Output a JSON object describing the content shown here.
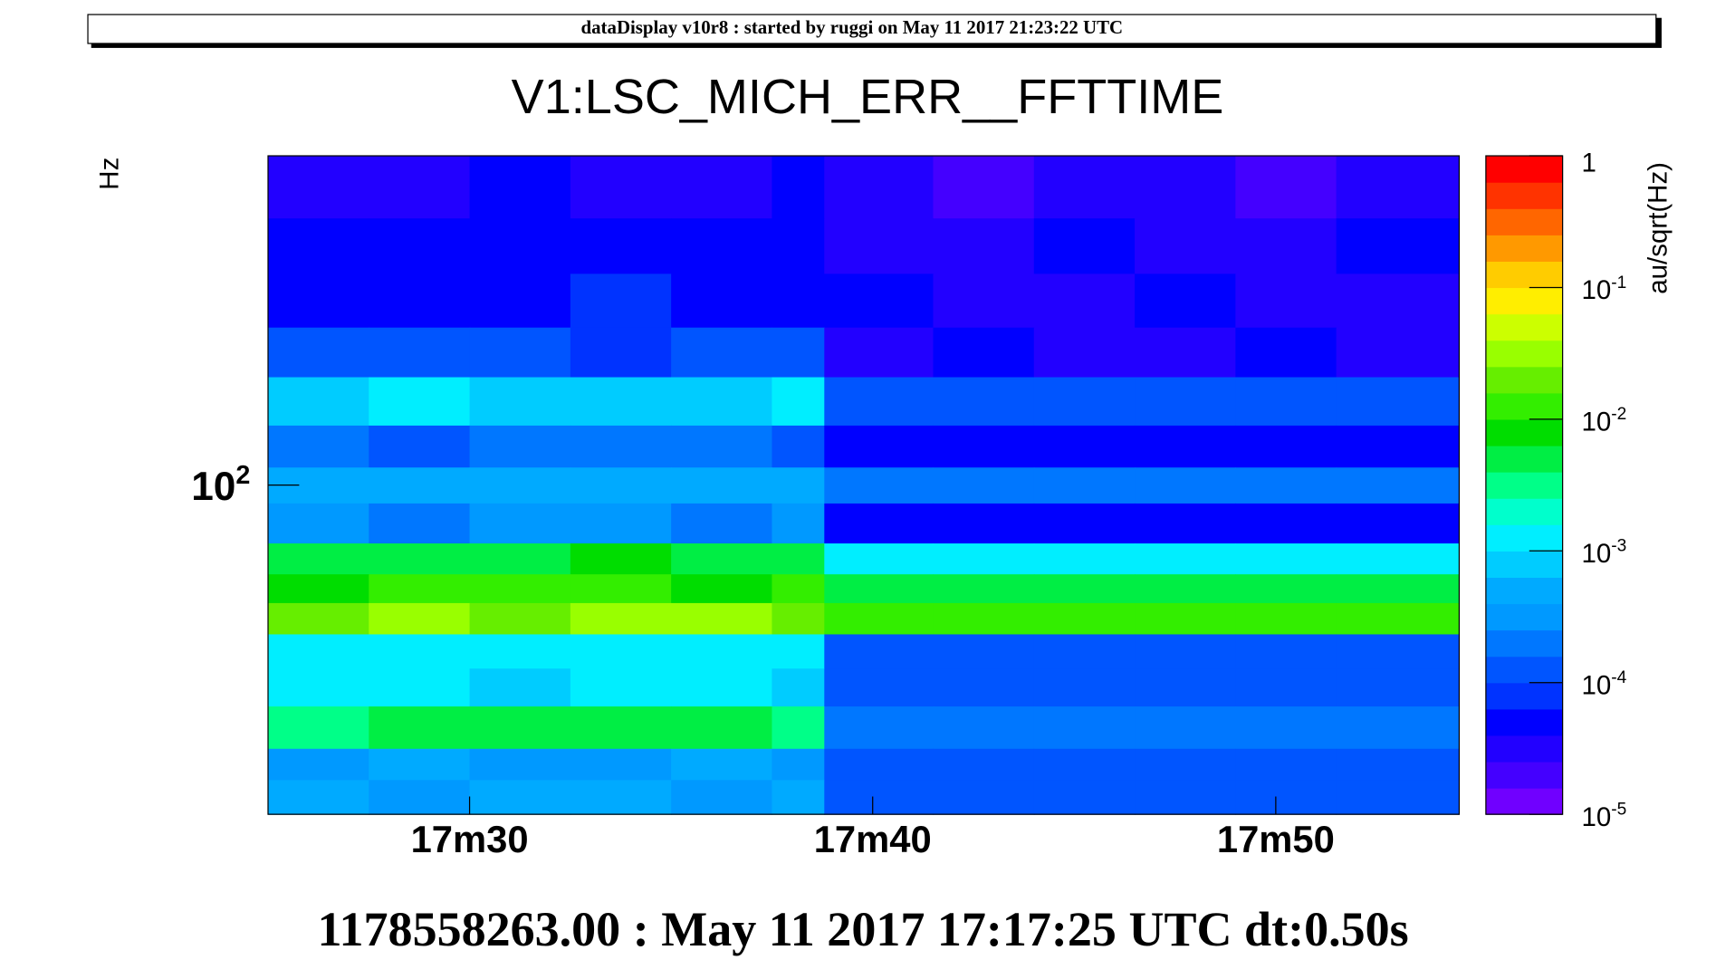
{
  "chart_data": {
    "type": "spectrogram",
    "header": "dataDisplay v10r8 : started by ruggi on May 11 2017 21:23:22 UTC",
    "title": "V1:LSC_MICH_ERR__FFTTIME",
    "ylabel": "Hz",
    "zlabel": "au/sqrt(Hz)",
    "footer": "1178558263.00 : May 11 2017 17:17:25 UTC dt:0.50s",
    "xlim": [
      25,
      54.55
    ],
    "xticks": [
      {
        "value": 30,
        "label": "17m30"
      },
      {
        "value": 40,
        "label": "17m40"
      },
      {
        "value": 50,
        "label": "17m50"
      }
    ],
    "ylim": [
      40,
      250
    ],
    "ylog": true,
    "yticks": [
      {
        "value": 100,
        "label": "10^2"
      }
    ],
    "zlim": [
      1e-05,
      1
    ],
    "zlog": true,
    "zticks": [
      1,
      {
        "value": 0.1,
        "label": "10^-1"
      },
      {
        "value": 0.01,
        "label": "10^-2"
      },
      {
        "value": 0.001,
        "label": "10^-3"
      },
      {
        "value": 0.0001,
        "label": "10^-4"
      },
      {
        "value": 1e-05,
        "label": "10^-5"
      }
    ],
    "palette": [
      "#7000ff",
      "#4400ff",
      "#2200ff",
      "#0000ff",
      "#0033ff",
      "#0055ff",
      "#0077ff",
      "#0099ff",
      "#00aaff",
      "#00ccff",
      "#00eeff",
      "#00ffcc",
      "#00ff88",
      "#00ee44",
      "#00dd00",
      "#33ee00",
      "#66ee00",
      "#99ff00",
      "#ccff00",
      "#ffee00",
      "#ffcc00",
      "#ff9900",
      "#ff6600",
      "#ff3300",
      "#ff0000"
    ],
    "xbins": [
      25,
      27.5,
      30,
      32.5,
      35,
      37.5,
      38.8,
      41.5,
      44,
      46.5,
      49,
      51.5,
      54.55
    ],
    "ybins": [
      250,
      210,
      180,
      155,
      135,
      118,
      105,
      95,
      85,
      78,
      72,
      66,
      60,
      54,
      48,
      44,
      40
    ],
    "z": [
      [
        3e-05,
        3e-05,
        4e-05,
        3e-05,
        3e-05,
        4e-05,
        3e-05,
        2e-05,
        3e-05,
        3e-05,
        2e-05,
        3e-05
      ],
      [
        5e-05,
        6e-05,
        5e-05,
        5e-05,
        6e-05,
        5e-05,
        3e-05,
        3e-05,
        4e-05,
        3e-05,
        3e-05,
        4e-05
      ],
      [
        6e-05,
        5e-05,
        6e-05,
        7e-05,
        6e-05,
        5e-05,
        4e-05,
        3e-05,
        3e-05,
        4e-05,
        3e-05,
        3e-05
      ],
      [
        0.0001,
        0.00012,
        0.0001,
        9e-05,
        0.0001,
        0.00011,
        3e-05,
        4e-05,
        3e-05,
        3e-05,
        4e-05,
        3e-05
      ],
      [
        0.0008,
        0.001,
        0.0009,
        0.0008,
        0.0009,
        0.001,
        0.00015,
        0.00012,
        0.00015,
        0.00013,
        0.00012,
        0.00015
      ],
      [
        0.0002,
        0.00015,
        0.0002,
        0.00025,
        0.0002,
        0.00015,
        5e-05,
        4e-05,
        5e-05,
        5e-05,
        4e-05,
        5e-05
      ],
      [
        0.0005,
        0.0006,
        0.0005,
        0.0004,
        0.0005,
        0.0006,
        0.0002,
        0.00025,
        0.0002,
        0.0002,
        0.00025,
        0.0002
      ],
      [
        0.0003,
        0.00025,
        0.0003,
        0.0003,
        0.00025,
        0.0003,
        5e-05,
        4e-05,
        5e-05,
        5e-05,
        6e-05,
        5e-05
      ],
      [
        0.005,
        0.006,
        0.005,
        0.007,
        0.005,
        0.006,
        0.0015,
        0.0012,
        0.0015,
        0.0015,
        0.0012,
        0.0015
      ],
      [
        0.008,
        0.01,
        0.012,
        0.01,
        0.009,
        0.01,
        0.005,
        0.004,
        0.005,
        0.005,
        0.004,
        0.005
      ],
      [
        0.025,
        0.03,
        0.025,
        0.03,
        0.03,
        0.025,
        0.015,
        0.015,
        0.015,
        0.015,
        0.015,
        0.015
      ],
      [
        0.0015,
        0.001,
        0.0012,
        0.0015,
        0.001,
        0.0012,
        0.00012,
        0.0001,
        0.00012,
        0.00015,
        0.0001,
        0.00012
      ],
      [
        0.001,
        0.0012,
        0.0008,
        0.001,
        0.0012,
        0.0009,
        0.00015,
        0.00012,
        0.00015,
        0.00012,
        0.00015,
        0.00012
      ],
      [
        0.003,
        0.004,
        0.004,
        0.005,
        0.004,
        0.003,
        0.0002,
        0.00025,
        0.0002,
        0.0002,
        0.00025,
        0.0002
      ],
      [
        0.0003,
        0.0004,
        0.0003,
        0.0003,
        0.0004,
        0.0003,
        0.00012,
        0.0001,
        0.00012,
        0.00012,
        0.0001,
        0.00012
      ],
      [
        0.0004,
        0.0003,
        0.0004,
        0.0004,
        0.0003,
        0.0004,
        0.00012,
        0.00012,
        0.0001,
        0.00012,
        0.00012,
        0.0001
      ]
    ]
  }
}
